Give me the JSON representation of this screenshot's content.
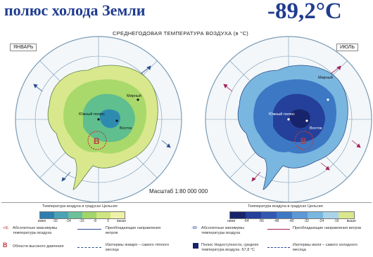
{
  "headline": "полюс холода Земли",
  "record_temperature": "-89,2°C",
  "map": {
    "title": "СРЕДНЕГОДОВАЯ ТЕМПЕРАТУРА ВОЗДУХА (в °С)",
    "left_label": "ЯНВАРЬ",
    "right_label": "ИЮЛЬ",
    "scale": "Масштаб 1:80 000 000",
    "places_left": [
      "Мирный",
      "Восток",
      "Южный полюс"
    ],
    "places_right": [
      "Мирный",
      "Восток",
      "Южный полюс"
    ],
    "high_pressure_marker": "В",
    "colors": {
      "ocean": "#f3f7fa",
      "grid": "#7a9bb5",
      "jan_outer": "#d9e88c",
      "jan_mid": "#a9d96a",
      "jan_inner": "#5fbf8e",
      "jan_core": "#2e8bb0",
      "jul_outer": "#79b7e0",
      "jul_mid": "#3d78c4",
      "jul_inner": "#24409a",
      "jul_core": "#17246b"
    }
  },
  "legend": {
    "left_caption": "Температура воздуха в градусах Цельсия",
    "right_caption": "Температура воздуха в градусах Цельсия",
    "left_ticks": [
      "ниже",
      "-32",
      "-24",
      "-16",
      "-8",
      "0",
      "выше"
    ],
    "right_ticks": [
      "ниже",
      "-64",
      "-56",
      "-48",
      "-40",
      "-32",
      "-24",
      "-16",
      "выше"
    ],
    "left_colors": [
      "#2e7fb0",
      "#4aa3b5",
      "#6cc09a",
      "#a2d56a",
      "#cfe57f",
      "#eef1a8"
    ],
    "right_colors": [
      "#17246b",
      "#24409a",
      "#3358b4",
      "#3d78c4",
      "#5d98d6",
      "#79b7e0",
      "#a9d3ea",
      "#d9e88c"
    ],
    "items": {
      "abs_max": "Абсолютные максимумы температуры воздуха",
      "prevailing_winds_left": "Преобладающие направления ветров",
      "high_pressure_areas": "Области высокого давления",
      "isotherms_left": "Изотермы января – самого тёплого месяца",
      "abs_min": "Абсолютные минимумы температуры воздуха",
      "inaccessibility_pole": "Полюс Недоступности, средняя температура воздуха -57,8 °С",
      "prevailing_winds_right": "Преобладающие направления ветров",
      "isotherms_right": "Изотермы июля – самого холодного месяца"
    },
    "high_pressure_symbol": "В"
  }
}
